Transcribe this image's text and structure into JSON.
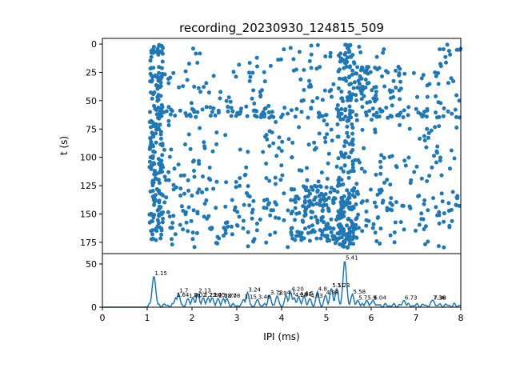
{
  "title": "recording_20230930_124815_509",
  "colors": {
    "series": "#1f77b4",
    "axis": "#000000",
    "background": "#ffffff"
  },
  "chart_data": [
    {
      "type": "scatter",
      "name": "raster",
      "ylabel": "t (s)",
      "xlabel": "",
      "xlim": [
        0,
        8
      ],
      "ylim": [
        185,
        -5
      ],
      "y_inverted": true,
      "yticks": [
        "0",
        "25",
        "50",
        "75",
        "100",
        "125",
        "150",
        "175"
      ],
      "grid": false,
      "note": "approx 1400 spike points; IPI 1.0-8.0 ms over 0-180 s; dense column near 1.15 ms and near 5.4 ms; denser horizontal bands near t=60 s and t=130-165 s"
    },
    {
      "type": "line",
      "name": "ipi-histogram",
      "xlabel": "IPI (ms)",
      "ylabel": "",
      "xlim": [
        0,
        8
      ],
      "ylim": [
        0,
        62
      ],
      "xticks": [
        "0",
        "1",
        "2",
        "3",
        "4",
        "5",
        "6",
        "7",
        "8"
      ],
      "yticks": [
        "0",
        "50"
      ],
      "grid": false,
      "peaks": [
        {
          "x": 1.15,
          "y": 36,
          "label": "1.15"
        },
        {
          "x": 1.64,
          "y": 11,
          "label": "1.64"
        },
        {
          "x": 1.7,
          "y": 16,
          "label": "1.7"
        },
        {
          "x": 1.91,
          "y": 10,
          "label": "1.91"
        },
        {
          "x": 2.02,
          "y": 11,
          "label": "2.02"
        },
        {
          "x": 2.13,
          "y": 16,
          "label": "2.13"
        },
        {
          "x": 2.25,
          "y": 11,
          "label": "2.25"
        },
        {
          "x": 2.36,
          "y": 11,
          "label": "2.36"
        },
        {
          "x": 2.45,
          "y": 11,
          "label": "2.45"
        },
        {
          "x": 2.58,
          "y": 10,
          "label": "2.58"
        },
        {
          "x": 2.7,
          "y": 10,
          "label": "2.70"
        },
        {
          "x": 2.78,
          "y": 10,
          "label": "2.78"
        },
        {
          "x": 3.15,
          "y": 9,
          "label": "3.15"
        },
        {
          "x": 3.24,
          "y": 17,
          "label": "3.24"
        },
        {
          "x": 3.46,
          "y": 9,
          "label": "3.46"
        },
        {
          "x": 3.73,
          "y": 14,
          "label": "3.73"
        },
        {
          "x": 3.9,
          "y": 13,
          "label": "3.9"
        },
        {
          "x": 4.1,
          "y": 14,
          "label": "4.1"
        },
        {
          "x": 4.2,
          "y": 18,
          "label": "4.20"
        },
        {
          "x": 4.28,
          "y": 11,
          "label": "4.28"
        },
        {
          "x": 4.38,
          "y": 12,
          "label": "4.38"
        },
        {
          "x": 4.5,
          "y": 13,
          "label": "4.5"
        },
        {
          "x": 4.63,
          "y": 10,
          "label": "4.63"
        },
        {
          "x": 4.8,
          "y": 18,
          "label": "4.8"
        },
        {
          "x": 4.98,
          "y": 14,
          "label": "4.98"
        },
        {
          "x": 5.11,
          "y": 22,
          "label": "5.11"
        },
        {
          "x": 5.23,
          "y": 22,
          "label": "5.23"
        },
        {
          "x": 5.41,
          "y": 54,
          "label": "5.41"
        },
        {
          "x": 5.58,
          "y": 15,
          "label": "5.58"
        },
        {
          "x": 5.7,
          "y": 8,
          "label": "5.7"
        },
        {
          "x": 5.9,
          "y": 8,
          "label": "5.9"
        },
        {
          "x": 6.04,
          "y": 8,
          "label": "6.04"
        },
        {
          "x": 6.73,
          "y": 8,
          "label": "6.73"
        },
        {
          "x": 7.36,
          "y": 8,
          "label": "7.36"
        },
        {
          "x": 7.38,
          "y": 8,
          "label": "7.38"
        }
      ]
    }
  ]
}
